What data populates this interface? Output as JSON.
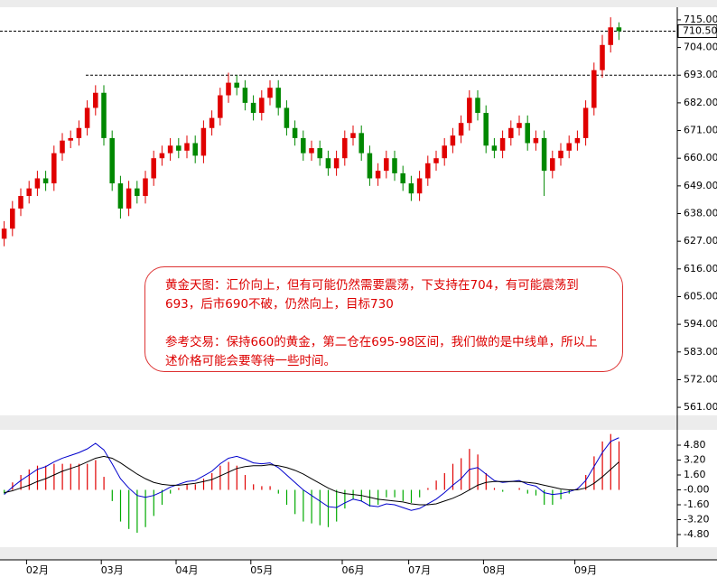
{
  "chart_data": [
    {
      "type": "candlestick",
      "categories": [
        null,
        null,
        null,
        null,
        "02月",
        null,
        null,
        null,
        null,
        null,
        null,
        null,
        null,
        "03月",
        null,
        null,
        null,
        null,
        null,
        null,
        null,
        null,
        "04月",
        null,
        null,
        null,
        null,
        null,
        null,
        null,
        null,
        "05月",
        null,
        null,
        null,
        null,
        null,
        null,
        null,
        null,
        null,
        null,
        "06月",
        null,
        null,
        null,
        null,
        null,
        null,
        null,
        "07月",
        null,
        null,
        null,
        null,
        null,
        null,
        null,
        null,
        "08月",
        null,
        null,
        null,
        null,
        null,
        null,
        null,
        null,
        null,
        null,
        "09月",
        null,
        null,
        null,
        null
      ],
      "open": [
        628,
        632,
        640,
        645,
        648,
        652,
        650,
        662,
        667,
        668,
        672,
        680,
        686,
        668,
        650,
        640,
        648,
        645,
        652,
        660,
        662,
        665,
        663,
        666,
        661,
        672,
        676,
        685,
        690,
        688,
        682,
        678,
        684,
        688,
        680,
        672,
        668,
        662,
        664,
        660,
        656,
        660,
        668,
        670,
        662,
        652,
        655,
        660,
        654,
        650,
        646,
        652,
        658,
        660,
        665,
        669,
        674,
        684,
        678,
        665,
        663,
        668,
        672,
        674,
        666,
        668,
        655,
        660,
        663,
        666,
        668,
        680,
        695,
        705,
        712
      ],
      "high": [
        635,
        643,
        648,
        651,
        655,
        655,
        665,
        670,
        671,
        675,
        683,
        689,
        689,
        671,
        653,
        651,
        651,
        655,
        663,
        665,
        668,
        668,
        669,
        669,
        675,
        679,
        688,
        694,
        693,
        691,
        685,
        687,
        691,
        691,
        683,
        675,
        671,
        667,
        667,
        663,
        663,
        671,
        673,
        673,
        665,
        658,
        663,
        663,
        657,
        653,
        655,
        661,
        663,
        668,
        672,
        677,
        687,
        687,
        681,
        668,
        671,
        675,
        677,
        677,
        671,
        671,
        663,
        666,
        669,
        671,
        683,
        698,
        709,
        716,
        714
      ],
      "low": [
        625,
        629,
        637,
        642,
        645,
        647,
        647,
        659,
        664,
        665,
        669,
        677,
        665,
        647,
        636,
        637,
        642,
        642,
        649,
        657,
        659,
        660,
        660,
        658,
        658,
        669,
        673,
        682,
        685,
        679,
        675,
        675,
        681,
        677,
        669,
        665,
        659,
        659,
        657,
        653,
        653,
        657,
        665,
        659,
        649,
        649,
        652,
        651,
        647,
        643,
        643,
        649,
        655,
        657,
        662,
        666,
        671,
        675,
        662,
        660,
        660,
        665,
        669,
        663,
        663,
        645,
        652,
        657,
        660,
        663,
        665,
        677,
        692,
        702,
        707
      ],
      "close": [
        632,
        640,
        645,
        648,
        652,
        650,
        662,
        667,
        668,
        672,
        680,
        686,
        668,
        650,
        640,
        648,
        645,
        652,
        660,
        662,
        665,
        663,
        666,
        661,
        672,
        676,
        685,
        690,
        688,
        682,
        678,
        684,
        688,
        680,
        672,
        668,
        662,
        664,
        660,
        656,
        660,
        668,
        670,
        662,
        652,
        655,
        660,
        654,
        650,
        646,
        652,
        658,
        660,
        665,
        669,
        674,
        684,
        678,
        665,
        663,
        668,
        672,
        674,
        666,
        668,
        655,
        660,
        663,
        666,
        668,
        680,
        695,
        705,
        712,
        710.5
      ],
      "colors": {
        "up": "#e00000",
        "down": "#008800"
      },
      "ylim": [
        557.8,
        720
      ],
      "yticks": [
        {
          "value": 715,
          "label": "715.00"
        },
        {
          "value": 704,
          "label": "704.00"
        },
        {
          "value": 693,
          "label": "693.00"
        },
        {
          "value": 682,
          "label": "682.00"
        },
        {
          "value": 671,
          "label": "671.00"
        },
        {
          "value": 660,
          "label": "660.00"
        },
        {
          "value": 649,
          "label": "649.00"
        },
        {
          "value": 638,
          "label": "638.00"
        },
        {
          "value": 627,
          "label": "627.00"
        },
        {
          "value": 616,
          "label": "616.00"
        },
        {
          "value": 605,
          "label": "605.00"
        },
        {
          "value": 594,
          "label": "594.00"
        },
        {
          "value": 583,
          "label": "583.00"
        },
        {
          "value": 572,
          "label": "572.00"
        },
        {
          "value": 561,
          "label": "561.00"
        }
      ],
      "reference_lines": [
        {
          "value": 710.5,
          "label": "710.50"
        },
        {
          "value": 693
        }
      ],
      "annotations": [
        "黄金天图：汇价向上，但有可能仍然需要震荡，下支持在704，有可能震荡到693，后市690不破，仍然向上，目标730",
        "参考交易：保持660的黄金，第二仓在695-98区间，我们做的是中线单，所以上述价格可能会要等待一些时间。"
      ]
    },
    {
      "type": "macd",
      "series": [
        {
          "type": "bar",
          "colors": {
            "up": "#e00000",
            "down": "#00aa00"
          },
          "values": [
            -0.4,
            0.8,
            1.6,
            2.2,
            2.6,
            2.6,
            2.8,
            2.8,
            2.8,
            2.8,
            2.8,
            3.2,
            1.4,
            -1.2,
            -3.4,
            -4.2,
            -4.6,
            -4.0,
            -2.8,
            -1.6,
            -0.4,
            0.2,
            0.6,
            0.6,
            1.2,
            1.8,
            2.6,
            3.0,
            2.6,
            1.6,
            0.6,
            0.4,
            0.4,
            -0.4,
            -1.6,
            -2.6,
            -3.4,
            -3.6,
            -3.8,
            -4.0,
            -3.4,
            -2.0,
            -1.0,
            -1.2,
            -1.8,
            -1.6,
            -0.8,
            -0.8,
            -1.2,
            -1.4,
            -0.8,
            0.2,
            1.0,
            1.8,
            2.8,
            3.4,
            4.4,
            3.8,
            1.8,
            0.2,
            -0.2,
            0,
            0.2,
            -0.4,
            -0.6,
            -1.6,
            -1.6,
            -1.0,
            -0.4,
            0.2,
            1.6,
            3.6,
            5.2,
            6.0,
            5.2
          ]
        },
        {
          "type": "line",
          "color": "#0000cc",
          "values": [
            -0.5,
            0.3,
            1.0,
            1.6,
            2.2,
            2.5,
            3.0,
            3.4,
            3.7,
            4.0,
            4.4,
            5.0,
            4.3,
            2.8,
            1.2,
            0.2,
            -0.6,
            -0.8,
            -0.6,
            -0.2,
            0.3,
            0.6,
            0.9,
            1.0,
            1.5,
            2.0,
            2.8,
            3.4,
            3.6,
            3.3,
            2.9,
            2.8,
            2.9,
            2.4,
            1.6,
            0.8,
            0,
            -0.6,
            -1.2,
            -1.8,
            -1.9,
            -1.4,
            -1.0,
            -1.2,
            -1.7,
            -1.8,
            -1.5,
            -1.6,
            -1.9,
            -2.2,
            -2.0,
            -1.5,
            -1.0,
            -0.3,
            0.5,
            1.2,
            2.2,
            2.4,
            1.7,
            1.0,
            0.8,
            0.9,
            1.0,
            0.6,
            0.4,
            -0.3,
            -0.5,
            -0.4,
            -0.2,
            0.1,
            1.0,
            2.5,
            4.0,
            5.2,
            5.6
          ]
        },
        {
          "type": "line",
          "color": "#000000",
          "values": [
            -0.3,
            -0.1,
            0.2,
            0.5,
            0.9,
            1.2,
            1.6,
            2.0,
            2.3,
            2.6,
            3.0,
            3.4,
            3.6,
            3.4,
            2.9,
            2.3,
            1.7,
            1.2,
            0.8,
            0.6,
            0.5,
            0.5,
            0.6,
            0.7,
            0.9,
            1.1,
            1.5,
            1.9,
            2.3,
            2.5,
            2.6,
            2.6,
            2.7,
            2.6,
            2.4,
            2.1,
            1.7,
            1.2,
            0.7,
            0.2,
            -0.2,
            -0.4,
            -0.5,
            -0.6,
            -0.8,
            -1.0,
            -1.1,
            -1.2,
            -1.3,
            -1.5,
            -1.6,
            -1.6,
            -1.5,
            -1.2,
            -0.9,
            -0.5,
            0,
            0.5,
            0.8,
            0.9,
            0.9,
            0.9,
            0.9,
            0.8,
            0.7,
            0.5,
            0.3,
            0.1,
            0,
            0,
            0.2,
            0.7,
            1.4,
            2.2,
            3.0
          ]
        }
      ],
      "ylim": [
        -6.06,
        6.45
      ],
      "yticks": [
        {
          "value": 4.8,
          "label": "4.80"
        },
        {
          "value": 3.2,
          "label": "3.20"
        },
        {
          "value": 1.6,
          "label": "1.60"
        },
        {
          "value": 0,
          "label": "-0.00"
        },
        {
          "value": -1.6,
          "label": "-1.60"
        },
        {
          "value": -3.2,
          "label": "-3.20"
        },
        {
          "value": -4.8,
          "label": "-4.80"
        }
      ]
    }
  ]
}
